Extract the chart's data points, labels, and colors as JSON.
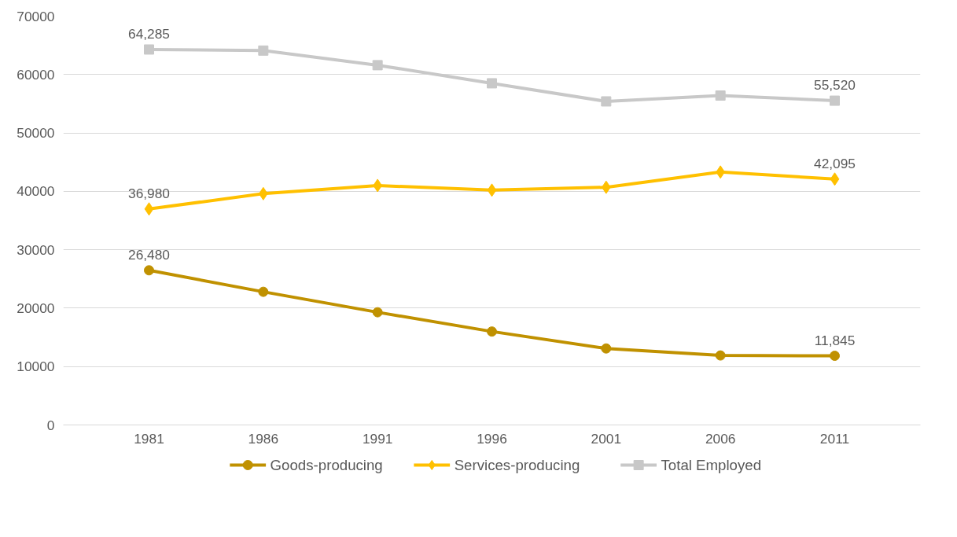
{
  "chart_data": {
    "type": "line",
    "categories": [
      "1981",
      "1986",
      "1991",
      "1996",
      "2001",
      "2006",
      "2011"
    ],
    "ylim": [
      0,
      70000
    ],
    "yticks": [
      0,
      10000,
      20000,
      30000,
      40000,
      50000,
      60000,
      70000
    ],
    "grid": "y",
    "legend": "bottom",
    "series": [
      {
        "name": "Goods-producing",
        "color": "#c09100",
        "marker": "circle",
        "values": [
          26480,
          22800,
          19300,
          16000,
          13100,
          11900,
          11845
        ],
        "value_labels": [
          "26,480",
          null,
          null,
          null,
          null,
          null,
          "11,845"
        ]
      },
      {
        "name": "Services-producing",
        "color": "#ffc000",
        "marker": "diamond",
        "values": [
          36980,
          39600,
          41000,
          40200,
          40700,
          43300,
          42095
        ],
        "value_labels": [
          "36,980",
          null,
          null,
          null,
          null,
          null,
          "42,095"
        ]
      },
      {
        "name": "Total Employed",
        "color": "#c8c8c8",
        "marker": "square",
        "values": [
          64285,
          64100,
          61600,
          58500,
          55400,
          56400,
          55520
        ],
        "value_labels": [
          "64,285",
          null,
          null,
          null,
          null,
          null,
          "55,520"
        ]
      }
    ]
  }
}
